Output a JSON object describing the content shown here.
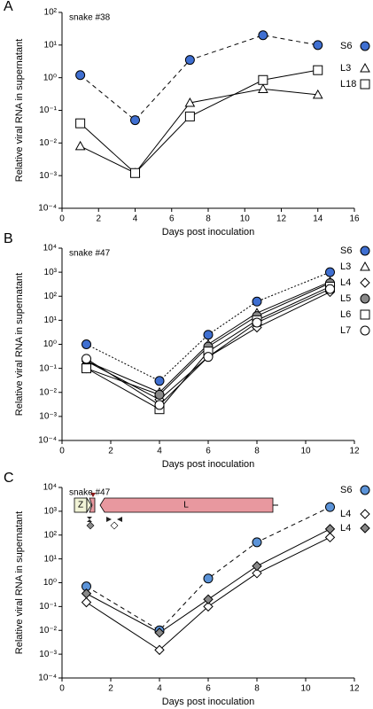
{
  "chart_data": [
    {
      "type": "line",
      "panel": "A",
      "subtitle": "snake #38",
      "xlabel": "Days post inoculation",
      "ylabel": "Relative viral RNA in supernatant",
      "yscale": "log",
      "xlim": [
        0,
        16
      ],
      "xticks": [
        0,
        2,
        4,
        6,
        8,
        10,
        12,
        14,
        16
      ],
      "ylim": [
        0.0001,
        100
      ],
      "yticks": [
        {
          "value": 100,
          "label": "10²"
        },
        {
          "value": 10,
          "label": "10¹"
        },
        {
          "value": 1,
          "label": "10⁰"
        },
        {
          "value": 0.1,
          "label": "10⁻¹"
        },
        {
          "value": 0.01,
          "label": "10⁻²"
        },
        {
          "value": 0.001,
          "label": "10⁻³"
        },
        {
          "value": 0.0001,
          "label": "10⁻⁴"
        }
      ],
      "x": [
        1,
        4,
        7,
        11,
        14
      ],
      "series": [
        {
          "name": "S6",
          "color": "#3f6fd1",
          "marker": "circle",
          "dash": "dashed",
          "values": [
            1.2,
            0.05,
            3.5,
            20,
            10
          ]
        },
        {
          "name": "L3",
          "color": "#ffffff",
          "marker": "triangle",
          "dash": "solid",
          "values": [
            0.008,
            0.0012,
            0.17,
            0.45,
            0.3
          ]
        },
        {
          "name": "L18",
          "color": "#ffffff",
          "marker": "square",
          "dash": "solid",
          "values": [
            0.04,
            0.0012,
            0.065,
            0.85,
            1.7
          ]
        }
      ]
    },
    {
      "type": "line",
      "panel": "B",
      "subtitle": "snake #47",
      "xlabel": "Days post inoculation",
      "ylabel": "Relative viral RNA in supernatant",
      "yscale": "log",
      "xlim": [
        0,
        12
      ],
      "xticks": [
        0,
        2,
        4,
        6,
        8,
        10,
        12
      ],
      "ylim": [
        0.0001,
        10000
      ],
      "yticks": [
        {
          "value": 10000,
          "label": "10⁴"
        },
        {
          "value": 1000,
          "label": "10³"
        },
        {
          "value": 100,
          "label": "10²"
        },
        {
          "value": 10,
          "label": "10¹"
        },
        {
          "value": 1,
          "label": "10⁰"
        },
        {
          "value": 0.1,
          "label": "10⁻¹"
        },
        {
          "value": 0.01,
          "label": "10⁻²"
        },
        {
          "value": 0.001,
          "label": "10⁻³"
        },
        {
          "value": 0.0001,
          "label": "10⁻⁴"
        }
      ],
      "x": [
        1,
        4,
        6,
        8,
        11
      ],
      "series": [
        {
          "name": "S6",
          "color": "#3f6fd1",
          "marker": "circle",
          "dash": "dotted",
          "values": [
            1.0,
            0.03,
            2.5,
            60,
            1000
          ]
        },
        {
          "name": "L3",
          "color": "#ffffff",
          "marker": "triangle",
          "dash": "solid",
          "values": [
            0.2,
            0.01,
            1.0,
            20,
            400
          ]
        },
        {
          "name": "L4",
          "color": "#ffffff",
          "marker": "diamond",
          "dash": "solid",
          "values": [
            0.2,
            0.005,
            0.3,
            5,
            150
          ]
        },
        {
          "name": "L5",
          "color": "#888888",
          "marker": "circle",
          "dash": "solid",
          "values": [
            0.1,
            0.008,
            0.8,
            15,
            350
          ]
        },
        {
          "name": "L6",
          "color": "#ffffff",
          "marker": "square",
          "dash": "solid",
          "values": [
            0.1,
            0.002,
            0.5,
            10,
            250
          ]
        },
        {
          "name": "L7",
          "color": "#ffffff",
          "marker": "circle",
          "dash": "solid",
          "values": [
            0.25,
            0.003,
            0.3,
            8,
            200
          ]
        }
      ]
    },
    {
      "type": "line",
      "panel": "C",
      "subtitle": "snake #47",
      "xlabel": "Days post inoculation",
      "ylabel": "Relative viral RNA in supernatant",
      "annotations": [
        "Z",
        "L"
      ],
      "yscale": "log",
      "xlim": [
        0,
        12
      ],
      "xticks": [
        0,
        2,
        4,
        6,
        8,
        10,
        12
      ],
      "ylim": [
        0.0001,
        10000
      ],
      "yticks": [
        {
          "value": 10000,
          "label": "10⁴"
        },
        {
          "value": 1000,
          "label": "10³"
        },
        {
          "value": 100,
          "label": "10²"
        },
        {
          "value": 10,
          "label": "10¹"
        },
        {
          "value": 1,
          "label": "10⁰"
        },
        {
          "value": 0.1,
          "label": "10⁻¹"
        },
        {
          "value": 0.01,
          "label": "10⁻²"
        },
        {
          "value": 0.001,
          "label": "10⁻³"
        },
        {
          "value": 0.0001,
          "label": "10⁻⁴"
        }
      ],
      "x": [
        1,
        4,
        6,
        8,
        11
      ],
      "series": [
        {
          "name": "S6",
          "color": "#5b93d8",
          "marker": "circle",
          "dash": "dashed",
          "values": [
            0.7,
            0.01,
            1.5,
            50,
            1500
          ]
        },
        {
          "name": "L4",
          "color": "#ffffff",
          "marker": "diamond",
          "dash": "solid",
          "values": [
            0.15,
            0.0015,
            0.1,
            2.5,
            80
          ]
        },
        {
          "name": "L4",
          "color": "#888888",
          "marker": "diamond",
          "dash": "solid",
          "values": [
            0.35,
            0.008,
            0.2,
            5,
            180
          ]
        }
      ]
    }
  ]
}
